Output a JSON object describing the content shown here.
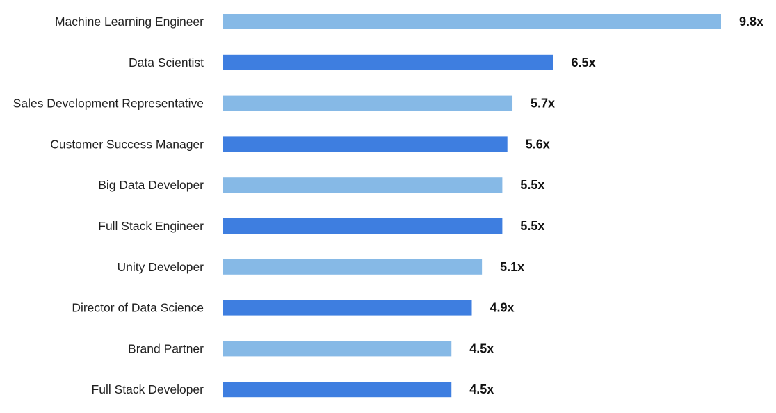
{
  "chart_data": {
    "type": "bar",
    "orientation": "horizontal",
    "title": "",
    "xlabel": "",
    "ylabel": "",
    "grid": false,
    "legend": "none",
    "xlim": [
      0,
      9.8
    ],
    "categories": [
      "Machine Learning Engineer",
      "Data Scientist",
      "Sales Development Representative",
      "Customer Success Manager",
      "Big Data Developer",
      "Full Stack Engineer",
      "Unity Developer",
      "Director of Data Science",
      "Brand Partner",
      "Full Stack Developer"
    ],
    "values": [
      9.8,
      6.5,
      5.7,
      5.6,
      5.5,
      5.5,
      5.1,
      4.9,
      4.5,
      4.5
    ],
    "value_labels": [
      "9.8x",
      "6.5x",
      "5.7x",
      "5.6x",
      "5.5x",
      "5.5x",
      "5.1x",
      "4.9x",
      "4.5x",
      "4.5x"
    ],
    "colors": {
      "light": "#86b9e6",
      "dark": "#3e7ee0"
    }
  }
}
